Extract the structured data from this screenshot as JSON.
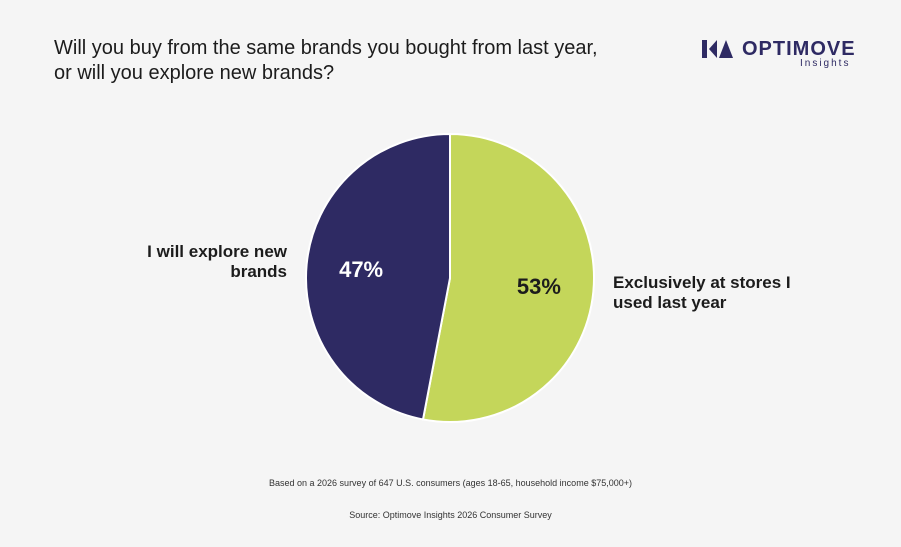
{
  "header": {
    "title": "Will you buy from the same brands you bought from last year, or will you explore new brands?"
  },
  "logo": {
    "name": "OPTIMOVE",
    "sub": "Insights",
    "color": "#2e2a63"
  },
  "chart_data": {
    "type": "pie",
    "slices": [
      {
        "label": "Exclusively at stores I used last year",
        "value": 53,
        "display": "53%",
        "color": "#c4d65a",
        "text_color": "#1c1c1c"
      },
      {
        "label": "I will explore new brands",
        "value": 47,
        "display": "47%",
        "color": "#2e2a63",
        "text_color": "#ffffff"
      }
    ],
    "start": "top",
    "direction": "clockwise"
  },
  "labels": {
    "left": "I will explore new brands",
    "right": "Exclusively at stores I used last year"
  },
  "footer": {
    "note": "Based on a 2026 survey of 647 U.S. consumers (ages 18-65, household income $75,000+)",
    "source": "Source: Optimove Insights 2026 Consumer Survey"
  }
}
